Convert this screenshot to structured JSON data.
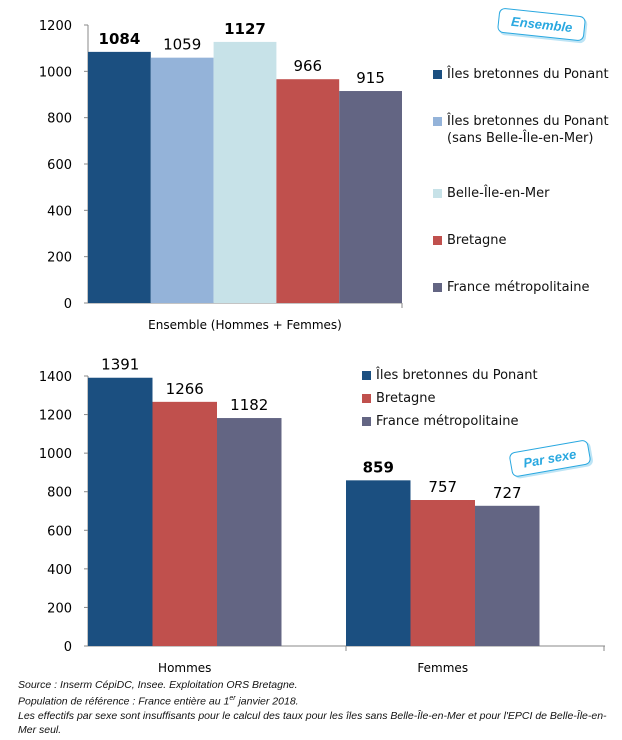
{
  "chart_data": [
    {
      "type": "bar",
      "categories": [
        "Ensemble (Hommes + Femmes)"
      ],
      "series": [
        {
          "name": "Îles bretonnes du Ponant",
          "color": "#1b4f80",
          "values": [
            1084
          ]
        },
        {
          "name": "Îles bretonnes du Ponant (sans Belle-Île-en-Mer)",
          "color": "#94b3d9",
          "values": [
            1059
          ]
        },
        {
          "name": "Belle-Île-en-Mer",
          "color": "#c7e2e8",
          "values": [
            1127
          ]
        },
        {
          "name": "Bretagne",
          "color": "#c0504d",
          "values": [
            966
          ]
        },
        {
          "name": "France métropolitaine",
          "color": "#636583",
          "values": [
            915
          ]
        }
      ],
      "ylim": [
        0,
        1200
      ],
      "yticks": [
        0,
        200,
        400,
        600,
        800,
        1000,
        1200
      ],
      "annotation": "Ensemble"
    },
    {
      "type": "bar",
      "categories": [
        "Hommes",
        "Femmes"
      ],
      "series": [
        {
          "name": "Îles bretonnes du Ponant",
          "color": "#1b4f80",
          "values": [
            1391,
            859
          ]
        },
        {
          "name": "Bretagne",
          "color": "#c0504d",
          "values": [
            1266,
            757
          ]
        },
        {
          "name": "France métropolitaine",
          "color": "#636583",
          "values": [
            1182,
            727
          ]
        }
      ],
      "ylim": [
        0,
        1400
      ],
      "yticks": [
        0,
        200,
        400,
        600,
        800,
        1000,
        1200,
        1400
      ],
      "annotation": "Par sexe"
    }
  ],
  "notes": {
    "source": "Source : Inserm CépiDC, Insee. Exploitation ORS Bretagne.",
    "population": [
      "Population de référence : France entière au 1",
      "er",
      " janvier 2018."
    ],
    "remark": "Les effectifs par sexe sont insuffisants pour le calcul des taux pour les îles sans Belle-Île-en-Mer et pour l'EPCI de Belle-Île-en-Mer seul."
  }
}
